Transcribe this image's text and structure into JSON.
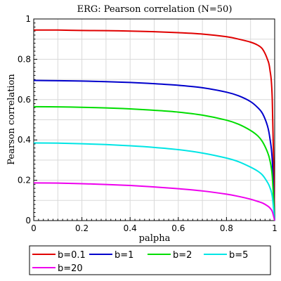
{
  "chart_data": {
    "type": "line",
    "title": "ERG: Pearson correlation (N=50)",
    "xlabel": "palpha",
    "ylabel": "Pearson correlation",
    "xlim": [
      0,
      1
    ],
    "ylim": [
      0,
      1
    ],
    "grid": true,
    "legend_position": "bottom",
    "x_ticks": [
      {
        "value": 0,
        "label": "0"
      },
      {
        "value": 0.2,
        "label": "0.2"
      },
      {
        "value": 0.4,
        "label": "0.4"
      },
      {
        "value": 0.6,
        "label": "0.6"
      },
      {
        "value": 0.8,
        "label": "0.8"
      },
      {
        "value": 1,
        "label": "1"
      }
    ],
    "y_ticks": [
      {
        "value": 0,
        "label": "0"
      },
      {
        "value": 0.2,
        "label": "0.2"
      },
      {
        "value": 0.4,
        "label": "0.4"
      },
      {
        "value": 0.6,
        "label": "0.6"
      },
      {
        "value": 0.8,
        "label": "0.8"
      },
      {
        "value": 1,
        "label": "1"
      }
    ],
    "x": [
      0,
      0.1,
      0.2,
      0.3,
      0.4,
      0.5,
      0.6,
      0.7,
      0.8,
      0.85,
      0.9,
      0.93,
      0.95,
      0.97,
      0.98,
      0.99,
      1.0
    ],
    "series": [
      {
        "name": "b=0.1",
        "color": "#e00000",
        "values": [
          0.945,
          0.945,
          0.943,
          0.942,
          0.94,
          0.937,
          0.932,
          0.925,
          0.912,
          0.9,
          0.885,
          0.87,
          0.85,
          0.8,
          0.75,
          0.6,
          0.0
        ]
      },
      {
        "name": "b=1",
        "color": "#0000cc",
        "values": [
          0.695,
          0.694,
          0.692,
          0.689,
          0.685,
          0.679,
          0.671,
          0.659,
          0.637,
          0.619,
          0.59,
          0.56,
          0.53,
          0.47,
          0.41,
          0.3,
          0.0
        ]
      },
      {
        "name": "b=2",
        "color": "#00dd00",
        "values": [
          0.565,
          0.564,
          0.562,
          0.559,
          0.554,
          0.547,
          0.538,
          0.523,
          0.498,
          0.478,
          0.447,
          0.42,
          0.39,
          0.34,
          0.3,
          0.22,
          0.0
        ]
      },
      {
        "name": "b=5",
        "color": "#00e5e5",
        "values": [
          0.385,
          0.384,
          0.381,
          0.377,
          0.371,
          0.363,
          0.352,
          0.335,
          0.31,
          0.292,
          0.265,
          0.245,
          0.225,
          0.19,
          0.165,
          0.12,
          0.0
        ]
      },
      {
        "name": "b=20",
        "color": "#ee00ee",
        "values": [
          0.187,
          0.186,
          0.183,
          0.179,
          0.174,
          0.167,
          0.158,
          0.147,
          0.131,
          0.12,
          0.106,
          0.095,
          0.087,
          0.073,
          0.063,
          0.045,
          0.0
        ]
      }
    ]
  }
}
